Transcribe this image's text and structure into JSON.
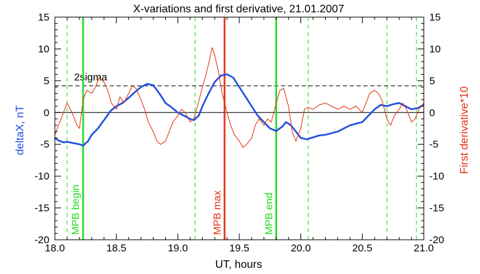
{
  "chart_data": {
    "type": "line",
    "title": "X-variations and first derivative, 21.01.2007",
    "xlabel": "UT, hours",
    "ylabel_left": "deltaX, nT",
    "ylabel_right": "First derivative*10",
    "xlim": [
      18.0,
      21.0
    ],
    "ylim": [
      -20,
      15
    ],
    "x_ticks": [
      18.0,
      18.5,
      19.0,
      19.5,
      20.0,
      20.5,
      21.0
    ],
    "x_tick_labels": [
      "18.0",
      "18.5",
      "19.0",
      "19.5",
      "20.0",
      "20.5",
      "21.0"
    ],
    "y_ticks": [
      -20,
      -15,
      -10,
      -5,
      0,
      5,
      10,
      15
    ],
    "y_tick_labels": [
      "-20",
      "-15",
      "-10",
      "-5",
      "0",
      "5",
      "10",
      "15"
    ],
    "colors": {
      "deltaX": "#1f4fe0",
      "derivative": "#e03010",
      "mpb_edge": "#22dd22",
      "mpb_max": "#e03010"
    },
    "threshold": {
      "label": "2sigma",
      "value": 4.2
    },
    "zero_line": 0,
    "vertical_markers": [
      {
        "x": 18.23,
        "label": "MPB begin",
        "color": "#22dd22"
      },
      {
        "x": 19.38,
        "label": "MPB max",
        "color": "#e03010"
      },
      {
        "x": 19.8,
        "label": "MPB end",
        "color": "#22dd22"
      }
    ],
    "dashed_verticals": [
      18.1,
      19.14,
      20.06,
      20.7,
      20.94
    ],
    "series": [
      {
        "key": "deltaX",
        "x": [
          18.0,
          18.03,
          18.07,
          18.1,
          18.15,
          18.2,
          18.23,
          18.27,
          18.3,
          18.35,
          18.4,
          18.45,
          18.5,
          18.55,
          18.6,
          18.65,
          18.7,
          18.75,
          18.8,
          18.85,
          18.9,
          18.95,
          19.0,
          19.05,
          19.1,
          19.13,
          19.17,
          19.2,
          19.25,
          19.3,
          19.35,
          19.4,
          19.45,
          19.5,
          19.55,
          19.6,
          19.65,
          19.7,
          19.75,
          19.8,
          19.85,
          19.88,
          19.92,
          19.96,
          20.0,
          20.05,
          20.1,
          20.15,
          20.2,
          20.3,
          20.4,
          20.5,
          20.55,
          20.6,
          20.65,
          20.7,
          20.75,
          20.8,
          20.85,
          20.9,
          20.95,
          21.0
        ],
        "y": [
          -4.0,
          -4.4,
          -4.7,
          -4.6,
          -4.8,
          -5.0,
          -5.2,
          -4.5,
          -3.5,
          -2.5,
          -1.2,
          0.2,
          1.0,
          1.5,
          2.3,
          3.2,
          4.0,
          4.5,
          4.3,
          3.0,
          1.5,
          0.8,
          0.0,
          -0.5,
          -1.0,
          -1.2,
          -0.5,
          1.0,
          3.0,
          4.8,
          5.8,
          6.0,
          5.5,
          4.0,
          2.5,
          1.0,
          -0.5,
          -1.5,
          -2.5,
          -2.9,
          -2.2,
          -1.5,
          -2.0,
          -3.0,
          -4.0,
          -4.2,
          -3.9,
          -3.6,
          -3.5,
          -3.0,
          -2.0,
          -1.5,
          -0.5,
          0.5,
          1.2,
          1.0,
          1.3,
          1.5,
          1.0,
          0.5,
          0.7,
          1.2
        ]
      },
      {
        "key": "derivative",
        "x": [
          18.0,
          18.02,
          18.05,
          18.08,
          18.1,
          18.12,
          18.15,
          18.18,
          18.2,
          18.23,
          18.26,
          18.3,
          18.33,
          18.36,
          18.4,
          18.43,
          18.46,
          18.5,
          18.53,
          18.56,
          18.6,
          18.63,
          18.66,
          18.7,
          18.73,
          18.76,
          18.8,
          18.83,
          18.86,
          18.9,
          18.93,
          18.96,
          19.0,
          19.03,
          19.06,
          19.1,
          19.13,
          19.16,
          19.2,
          19.23,
          19.26,
          19.28,
          19.3,
          19.33,
          19.36,
          19.4,
          19.43,
          19.46,
          19.5,
          19.53,
          19.56,
          19.6,
          19.63,
          19.66,
          19.7,
          19.73,
          19.76,
          19.78,
          19.8,
          19.83,
          19.86,
          19.9,
          19.93,
          19.96,
          20.0,
          20.03,
          20.06,
          20.1,
          20.15,
          20.2,
          20.25,
          20.3,
          20.35,
          20.4,
          20.45,
          20.5,
          20.53,
          20.56,
          20.6,
          20.63,
          20.66,
          20.7,
          20.73,
          20.76,
          20.8,
          20.83,
          20.86,
          20.9,
          20.93,
          20.96,
          21.0
        ],
        "y": [
          -3.5,
          -2.5,
          -1.0,
          0.5,
          1.5,
          0.8,
          -0.5,
          -2.0,
          -2.5,
          2.0,
          3.5,
          3.0,
          4.0,
          5.5,
          4.8,
          3.5,
          1.5,
          0.5,
          2.5,
          1.5,
          3.0,
          4.2,
          3.8,
          2.0,
          0.5,
          -1.5,
          -3.0,
          -4.5,
          -5.0,
          -4.5,
          -3.0,
          -1.5,
          -0.5,
          0.5,
          0.0,
          -1.5,
          -1.0,
          1.0,
          4.0,
          6.0,
          8.5,
          10.2,
          9.0,
          6.5,
          3.0,
          0.0,
          -2.0,
          -3.5,
          -4.5,
          -5.5,
          -5.0,
          -4.0,
          -2.0,
          -1.0,
          -2.0,
          -1.0,
          -1.5,
          0.0,
          1.5,
          3.5,
          3.8,
          1.0,
          -3.0,
          -4.5,
          -2.5,
          0.5,
          0.8,
          0.5,
          1.2,
          1.5,
          1.0,
          0.5,
          1.0,
          0.5,
          1.0,
          0.0,
          1.5,
          3.0,
          3.5,
          3.0,
          2.0,
          -1.0,
          -2.0,
          -0.5,
          0.5,
          1.5,
          0.5,
          -1.5,
          -1.0,
          0.5,
          1.5
        ]
      }
    ]
  }
}
